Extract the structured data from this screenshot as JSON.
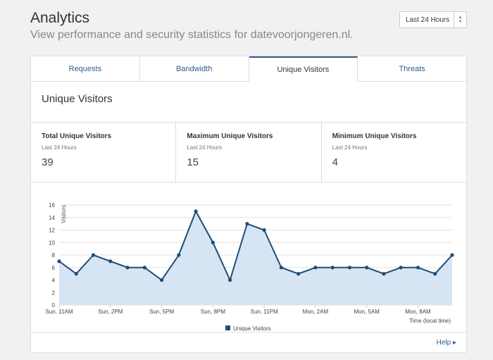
{
  "header": {
    "title": "Analytics",
    "subtitle": "View performance and security statistics for datevoorjongeren.nl."
  },
  "range_select": {
    "value": "Last 24 Hours"
  },
  "tabs": [
    {
      "label": "Requests",
      "active": false
    },
    {
      "label": "Bandwidth",
      "active": false
    },
    {
      "label": "Unique Visitors",
      "active": true
    },
    {
      "label": "Threats",
      "active": false
    }
  ],
  "section": {
    "title": "Unique Visitors"
  },
  "stats": [
    {
      "label": "Total Unique Visitors",
      "period": "Last 24 Hours",
      "value": "39"
    },
    {
      "label": "Maximum Unique Visitors",
      "period": "Last 24 Hours",
      "value": "15"
    },
    {
      "label": "Minimum Unique Visitors",
      "period": "Last 24 Hours",
      "value": "4"
    }
  ],
  "footer": {
    "help_label": "Help"
  },
  "colors": {
    "accent": "#2c5d8f",
    "series_line": "#1f4e79",
    "series_fill": "#d6e4f3"
  },
  "chart_data": {
    "type": "area",
    "ylabel": "Visitors",
    "xlabel": "Time (local time)",
    "ylim": [
      0,
      16
    ],
    "yticks": [
      0,
      2,
      4,
      6,
      8,
      10,
      12,
      14,
      16
    ],
    "xtick_labels": [
      "Sun, 11AM",
      "Sun, 2PM",
      "Sun, 5PM",
      "Sun, 8PM",
      "Sun, 11PM",
      "Mon, 2AM",
      "Mon, 5AM",
      "Mon, 8AM"
    ],
    "grid": true,
    "legend_position": "bottom-center",
    "series": [
      {
        "name": "Unique Visitors",
        "values": [
          7,
          5,
          8,
          7,
          6,
          6,
          4,
          8,
          15,
          10,
          4,
          13,
          12,
          6,
          5,
          6,
          6,
          6,
          6,
          5,
          6,
          6,
          5,
          8
        ]
      }
    ]
  }
}
